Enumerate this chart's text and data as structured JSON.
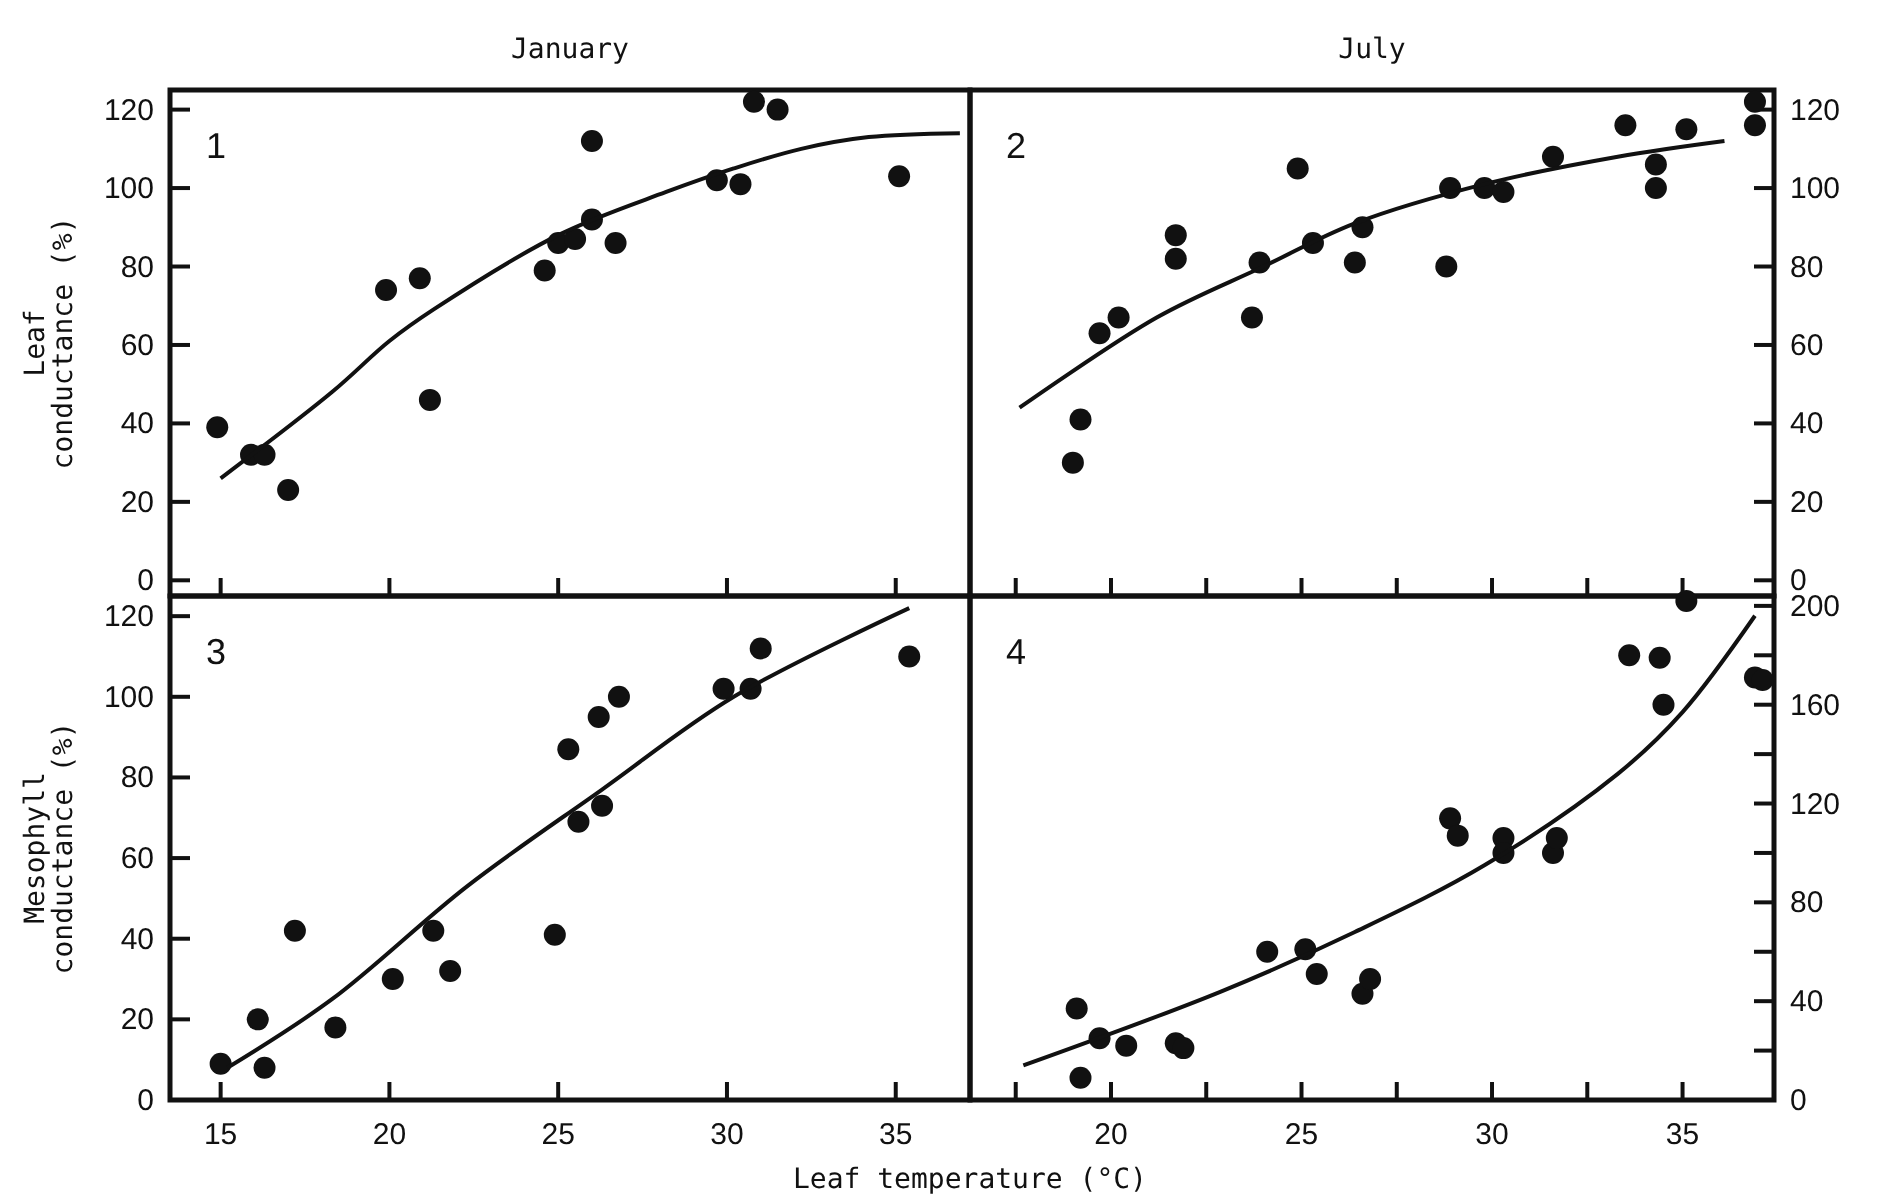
{
  "chart_data": [
    {
      "type": "scatter",
      "title": "January",
      "ylabel": "Leaf conductance (%)",
      "annotations": [
        "1"
      ],
      "xlim": [
        13.5,
        37.2
      ],
      "xticks": [
        15,
        20,
        25,
        30,
        35
      ],
      "ylim": [
        -4,
        125
      ],
      "yticks": [
        0,
        20,
        40,
        60,
        80,
        100,
        120
      ],
      "tick_labels": "y",
      "marker": "circle",
      "series": [
        {
          "color": "#111111",
          "x": [
            14.9,
            15.9,
            16.3,
            17.0,
            19.9,
            20.9,
            21.2,
            24.6,
            25.0,
            25.5,
            26.0,
            26.0,
            26.7,
            29.7,
            30.4,
            30.8,
            31.5,
            35.1
          ],
          "values": [
            39,
            32,
            32,
            23,
            74,
            77,
            46,
            79,
            86,
            87,
            92,
            112,
            86,
            102,
            101,
            122,
            120,
            103
          ]
        },
        {
          "type": "line",
          "marker": "none",
          "color": "#111111",
          "x": [
            15.0,
            18.3,
            20.0,
            21.3,
            25.0,
            28.2,
            30.2,
            32.2,
            34.2,
            36.9
          ],
          "values": [
            26,
            48,
            61,
            69,
            88,
            99,
            105,
            110,
            113,
            114
          ]
        }
      ]
    },
    {
      "type": "scatter",
      "title": "July",
      "annotations": [
        "2"
      ],
      "xlim": [
        16.3,
        37.4
      ],
      "xticks": [
        {
          "value": 17.5,
          "label": null
        },
        20,
        {
          "value": 22.5,
          "label": null
        },
        25,
        {
          "value": 27.5,
          "label": null
        },
        30,
        {
          "value": 32.5,
          "label": null
        },
        35
      ],
      "y2lim": [
        -4,
        125
      ],
      "y2ticks": [
        0,
        20,
        40,
        60,
        80,
        100,
        120
      ],
      "tick_labels": "y",
      "marker": "circle",
      "series": [
        {
          "axis": "y2",
          "color": "#111111",
          "x": [
            19.0,
            19.2,
            19.7,
            20.2,
            21.7,
            21.7,
            23.7,
            23.9,
            24.9,
            25.3,
            26.4,
            26.6,
            28.8,
            28.9,
            29.8,
            30.3,
            31.6,
            33.5,
            34.3,
            34.3,
            35.1,
            36.9,
            36.9
          ],
          "values": [
            30,
            41,
            63,
            67,
            88,
            82,
            67,
            81,
            105,
            86,
            81,
            90,
            80,
            100,
            100,
            99,
            108,
            116,
            106,
            100,
            115,
            122,
            116
          ]
        },
        {
          "type": "line",
          "marker": "none",
          "axis": "y2",
          "color": "#111111",
          "x": [
            17.6,
            21.2,
            24.0,
            26.4,
            29.8,
            33.3,
            36.1
          ],
          "values": [
            44,
            67,
            80,
            91,
            101,
            108,
            112
          ]
        }
      ]
    },
    {
      "type": "scatter",
      "ylabel": "Mesophyll conductance (%)",
      "xlabel": "Leaf temperature (°C)",
      "annotations": [
        "3"
      ],
      "xlim": [
        13.5,
        37.2
      ],
      "xticks": [
        15,
        20,
        25,
        30,
        35
      ],
      "ylim": [
        0,
        125
      ],
      "yticks": [
        0,
        20,
        40,
        60,
        80,
        100,
        120
      ],
      "marker": "circle",
      "series": [
        {
          "color": "#111111",
          "x": [
            15.0,
            16.1,
            16.3,
            17.2,
            18.4,
            20.1,
            21.3,
            21.8,
            24.9,
            25.3,
            25.6,
            26.2,
            26.3,
            26.8,
            29.9,
            30.7,
            31.0,
            35.4
          ],
          "values": [
            9,
            20,
            8,
            42,
            18,
            30,
            42,
            32,
            41,
            87,
            69,
            95,
            73,
            100,
            102,
            102,
            112,
            110
          ]
        },
        {
          "type": "line",
          "marker": "none",
          "color": "#111111",
          "x": [
            15.2,
            18.3,
            22.3,
            26.3,
            30.2,
            35.4
          ],
          "values": [
            8,
            25,
            53,
            77,
            100,
            122
          ]
        }
      ]
    },
    {
      "type": "scatter",
      "annotations": [
        "4"
      ],
      "xlim": [
        16.3,
        37.4
      ],
      "xticks": [
        {
          "value": 17.5,
          "label": null
        },
        20,
        {
          "value": 22.5,
          "label": null
        },
        25,
        {
          "value": 27.5,
          "label": null
        },
        30,
        {
          "value": 32.5,
          "label": null
        },
        35
      ],
      "y2lim": [
        0,
        204
      ],
      "y2ticks": [
        0,
        {
          "value": 20,
          "label": null
        },
        40,
        {
          "value": 60,
          "label": null
        },
        80,
        {
          "value": 100,
          "label": null
        },
        120,
        {
          "value": 140,
          "label": null
        },
        160,
        {
          "value": 180,
          "label": null
        },
        200
      ],
      "marker": "circle",
      "series": [
        {
          "axis": "y2",
          "color": "#111111",
          "x": [
            19.1,
            19.2,
            19.7,
            20.4,
            21.7,
            21.9,
            24.1,
            25.1,
            25.4,
            26.6,
            26.8,
            28.9,
            29.1,
            30.3,
            30.3,
            31.6,
            31.7,
            33.6,
            34.4,
            34.5,
            35.1,
            36.9,
            37.1
          ],
          "values": [
            37,
            9,
            25,
            22,
            23,
            21,
            60,
            61,
            51,
            43,
            49,
            114,
            107,
            106,
            100,
            100,
            106,
            180,
            179,
            160,
            202,
            171,
            170
          ]
        },
        {
          "type": "line",
          "marker": "none",
          "axis": "y2",
          "color": "#111111",
          "x": [
            17.7,
            22.9,
            26.4,
            29.8,
            33.3,
            35.0,
            36.9
          ],
          "values": [
            14,
            44,
            68,
            95,
            132,
            157,
            196
          ]
        }
      ]
    }
  ]
}
